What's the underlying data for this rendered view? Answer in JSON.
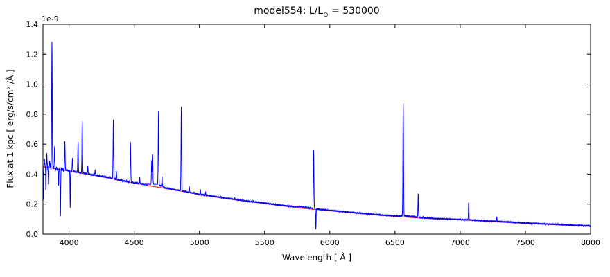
{
  "figure": {
    "background": "#ffffff"
  },
  "chart_data": {
    "type": "line",
    "title": "model554: L/L⊙ = 530000",
    "title_pre": "model554: L/L",
    "title_sub": "⊙",
    "title_post": " = 530000",
    "xlabel": "Wavelength [ Å ]",
    "ylabel": "Flux at 1 kpc [ erg/s/cm² /Å ]",
    "y_offset_text": "1e-9",
    "y_values_unit": "1e-9 erg/s/cm²/Å",
    "xlim": [
      3800,
      8000
    ],
    "ylim": [
      0,
      1.4
    ],
    "xticks": [
      4000,
      4500,
      5000,
      5500,
      6000,
      6500,
      7000,
      7500,
      8000
    ],
    "yticks": [
      0.0,
      0.2,
      0.4,
      0.6,
      0.8,
      1.0,
      1.2,
      1.4
    ],
    "grid": false,
    "legend": false,
    "axis_color": "#000000",
    "series": [
      {
        "name": "continuum-fit",
        "color": "#ff0000",
        "x": [
          3800,
          3900,
          4000,
          4100,
          4200,
          4300,
          4400,
          4500,
          4600,
          4700,
          4800,
          4900,
          5000,
          5100,
          5200,
          5300,
          5400,
          5500,
          5600,
          5700,
          5800,
          5900,
          6000,
          6100,
          6200,
          6300,
          6400,
          6500,
          6600,
          6700,
          6800,
          6900,
          7000,
          7100,
          7200,
          7300,
          7400,
          7500,
          7600,
          7700,
          7800,
          7900,
          8000
        ],
        "y": [
          0.45,
          0.435,
          0.42,
          0.405,
          0.39,
          0.375,
          0.355,
          0.34,
          0.325,
          0.31,
          0.295,
          0.28,
          0.262,
          0.25,
          0.237,
          0.225,
          0.213,
          0.204,
          0.192,
          0.181,
          0.171,
          0.163,
          0.156,
          0.147,
          0.139,
          0.131,
          0.124,
          0.118,
          0.112,
          0.106,
          0.101,
          0.098,
          0.095,
          0.09,
          0.085,
          0.081,
          0.076,
          0.071,
          0.067,
          0.063,
          0.059,
          0.055,
          0.052
        ]
      },
      {
        "name": "spectrum",
        "color": "#0000ff",
        "base": "continuum-fit",
        "lines_note": "center in Å, peak in 1e-9 flux units (absolute), sigma in Å; peaks below the continuum are absorption dips",
        "lines": [
          {
            "center": 3804,
            "peak": 0.22,
            "sigma": 1.5
          },
          {
            "center": 3812,
            "peak": 0.5,
            "sigma": 1.8
          },
          {
            "center": 3822,
            "peak": 0.28,
            "sigma": 1.5
          },
          {
            "center": 3830,
            "peak": 0.52,
            "sigma": 1.8
          },
          {
            "center": 3842,
            "peak": 0.33,
            "sigma": 1.5
          },
          {
            "center": 3850,
            "peak": 0.5,
            "sigma": 1.8
          },
          {
            "center": 3869,
            "peak": 1.28,
            "sigma": 2.2
          },
          {
            "center": 3889,
            "peak": 0.58,
            "sigma": 2.0
          },
          {
            "center": 3920,
            "peak": 0.33,
            "sigma": 1.5
          },
          {
            "center": 3934,
            "peak": 0.12,
            "sigma": 1.8
          },
          {
            "center": 3968,
            "peak": 0.62,
            "sigma": 2.0
          },
          {
            "center": 4009,
            "peak": 0.18,
            "sigma": 1.5
          },
          {
            "center": 4026,
            "peak": 0.5,
            "sigma": 2.0
          },
          {
            "center": 4069,
            "peak": 0.62,
            "sigma": 2.0
          },
          {
            "center": 4101,
            "peak": 0.75,
            "sigma": 2.2
          },
          {
            "center": 4144,
            "peak": 0.45,
            "sigma": 1.8
          },
          {
            "center": 4200,
            "peak": 0.43,
            "sigma": 1.8
          },
          {
            "center": 4340,
            "peak": 0.76,
            "sigma": 2.2
          },
          {
            "center": 4363,
            "peak": 0.42,
            "sigma": 1.8
          },
          {
            "center": 4471,
            "peak": 0.62,
            "sigma": 2.0
          },
          {
            "center": 4542,
            "peak": 0.38,
            "sigma": 1.8
          },
          {
            "center": 4634,
            "peak": 0.48,
            "sigma": 2.0
          },
          {
            "center": 4641,
            "peak": 0.52,
            "sigma": 2.0
          },
          {
            "center": 4660,
            "peak": 0.335,
            "sigma": 40
          },
          {
            "center": 4686,
            "peak": 0.81,
            "sigma": 2.2
          },
          {
            "center": 4713,
            "peak": 0.38,
            "sigma": 1.8
          },
          {
            "center": 4861,
            "peak": 0.85,
            "sigma": 2.2
          },
          {
            "center": 4922,
            "peak": 0.32,
            "sigma": 1.8
          },
          {
            "center": 4959,
            "peak": 0.28,
            "sigma": 1.8
          },
          {
            "center": 5007,
            "peak": 0.3,
            "sigma": 1.8
          },
          {
            "center": 5047,
            "peak": 0.28,
            "sigma": 1.5
          },
          {
            "center": 5160,
            "peak": 0.255,
            "sigma": 1.5
          },
          {
            "center": 5270,
            "peak": 0.245,
            "sigma": 1.5
          },
          {
            "center": 5411,
            "peak": 0.22,
            "sigma": 1.8
          },
          {
            "center": 5680,
            "peak": 0.195,
            "sigma": 1.5
          },
          {
            "center": 5800,
            "peak": 0.18,
            "sigma": 60
          },
          {
            "center": 5876,
            "peak": 0.56,
            "sigma": 2.2
          },
          {
            "center": 5893,
            "peak": 0.03,
            "sigma": 1.8
          },
          {
            "center": 6300,
            "peak": 0.14,
            "sigma": 1.5
          },
          {
            "center": 6563,
            "peak": 0.87,
            "sigma": 2.5
          },
          {
            "center": 6600,
            "peak": 0.12,
            "sigma": 50
          },
          {
            "center": 6678,
            "peak": 0.27,
            "sigma": 2.0
          },
          {
            "center": 6716,
            "peak": 0.12,
            "sigma": 1.5
          },
          {
            "center": 7065,
            "peak": 0.21,
            "sigma": 2.0
          },
          {
            "center": 7135,
            "peak": 0.095,
            "sigma": 1.5
          },
          {
            "center": 7281,
            "peak": 0.115,
            "sigma": 1.5
          },
          {
            "center": 7590,
            "peak": 0.075,
            "sigma": 1.5
          },
          {
            "center": 7751,
            "peak": 0.07,
            "sigma": 1.5
          }
        ]
      }
    ]
  }
}
